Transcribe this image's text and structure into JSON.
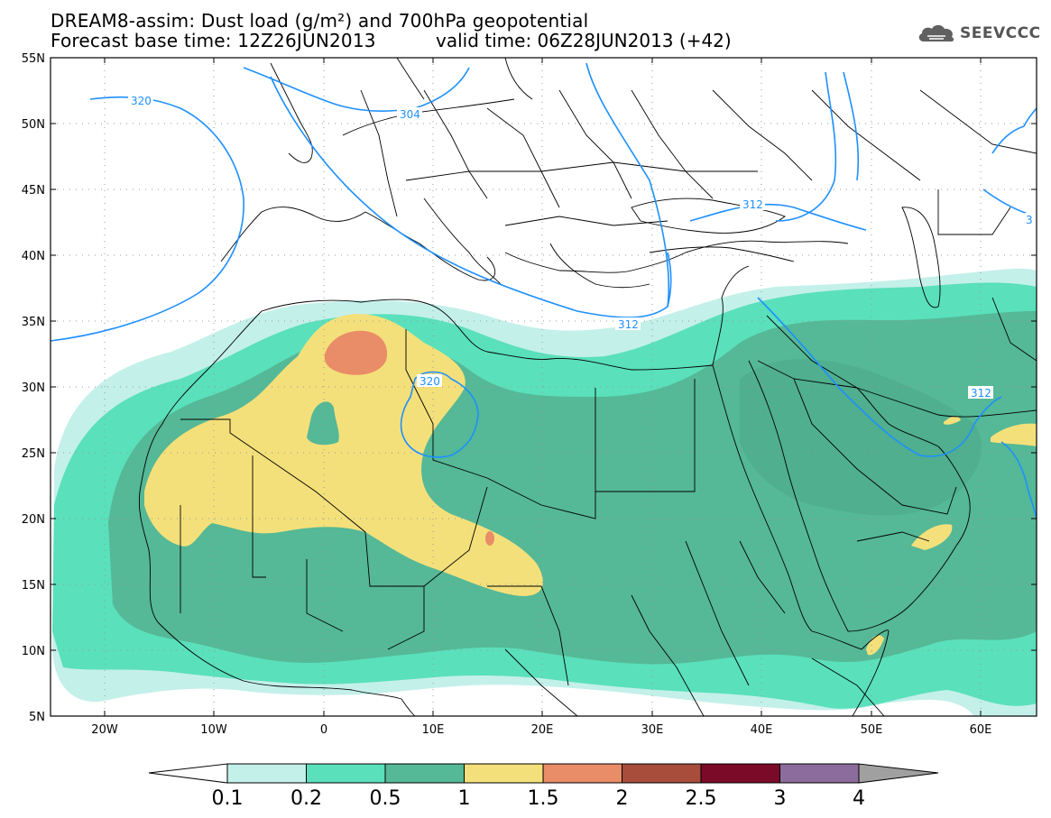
{
  "header": {
    "title_line1": "DREAM8-assim: Dust load (g/m²) and 700hPa geopotential",
    "title_line2": "Forecast base time: 12Z26JUN2013",
    "valid_time": "valid time: 06Z28JUN2013 (+42)",
    "logo_text": "SEEVCCC",
    "logo_icon": "cloud-icon"
  },
  "map": {
    "lon_range": [
      -25,
      65
    ],
    "lat_range": [
      5,
      55
    ],
    "lat_ticks": [
      "55N",
      "50N",
      "45N",
      "40N",
      "35N",
      "30N",
      "25N",
      "20N",
      "15N",
      "10N",
      "5N"
    ],
    "lon_ticks": [
      "20W",
      "10W",
      "0",
      "10E",
      "20E",
      "30E",
      "40E",
      "50E",
      "60E"
    ],
    "contour_labels": [
      "320",
      "304",
      "312",
      "312",
      "320",
      "312",
      "3"
    ],
    "contour_color": "#1e90ff"
  },
  "colorbar": {
    "labels": [
      "0.1",
      "0.2",
      "0.5",
      "1",
      "1.5",
      "2",
      "2.5",
      "3",
      "4"
    ],
    "colors": [
      "#c4f0ea",
      "#5ae0bb",
      "#55b896",
      "#f4e07a",
      "#e98c68",
      "#a84c3c",
      "#7a0a28",
      "#8c6c9c",
      "#a0a0a0"
    ],
    "under_color": "#ffffff"
  }
}
